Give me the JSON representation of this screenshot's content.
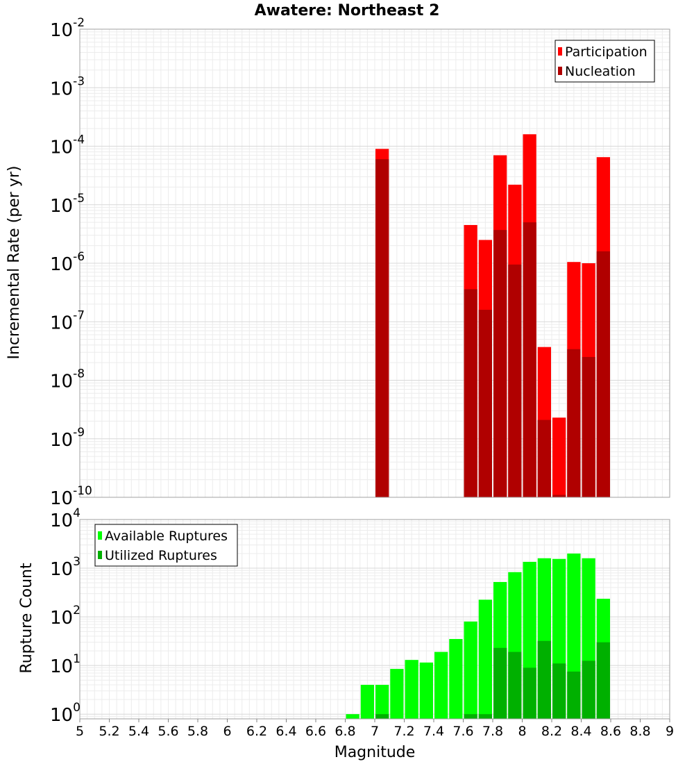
{
  "chart_data": [
    {
      "type": "bar",
      "title": "Awatere: Northeast 2",
      "xlabel": "",
      "ylabel": "Incremental Rate (per yr)",
      "yscale": "log",
      "xlim": [
        5,
        9
      ],
      "ylim": [
        1e-10,
        0.01
      ],
      "y_ticks": [
        {
          "base": "10",
          "exp": "-2"
        },
        {
          "base": "10",
          "exp": "-3"
        },
        {
          "base": "10",
          "exp": "-4"
        },
        {
          "base": "10",
          "exp": "-5"
        },
        {
          "base": "10",
          "exp": "-6"
        },
        {
          "base": "10",
          "exp": "-7"
        },
        {
          "base": "10",
          "exp": "-8"
        },
        {
          "base": "10",
          "exp": "-9"
        },
        {
          "base": "10",
          "exp": "-10"
        }
      ],
      "grid": true,
      "legend_position": "top-right",
      "x": [
        7.05,
        7.65,
        7.75,
        7.85,
        7.95,
        8.05,
        8.15,
        8.25,
        8.35,
        8.45,
        8.55
      ],
      "series": [
        {
          "name": "Participation",
          "color": "#ff0000",
          "values": [
            9e-05,
            4.5e-06,
            2.5e-06,
            7e-05,
            2.2e-05,
            0.00016,
            3.7e-08,
            2.3e-09,
            1.05e-06,
            1e-06,
            6.5e-05
          ]
        },
        {
          "name": "Nucleation",
          "color": "#b00000",
          "values": [
            6e-05,
            3.6e-07,
            1.6e-07,
            3.7e-06,
            9.5e-07,
            5e-06,
            2.1e-09,
            1.1e-10,
            3.4e-08,
            2.5e-08,
            1.6e-06
          ]
        }
      ]
    },
    {
      "type": "bar",
      "title": "",
      "xlabel": "Magnitude",
      "ylabel": "Rupture Count",
      "yscale": "log",
      "xlim": [
        5,
        9
      ],
      "ylim": [
        0.8,
        10000
      ],
      "x_ticks": [
        "5",
        "5.2",
        "5.4",
        "5.6",
        "5.8",
        "6",
        "6.2",
        "6.4",
        "6.6",
        "6.8",
        "7",
        "7.2",
        "7.4",
        "7.6",
        "7.8",
        "8",
        "8.2",
        "8.4",
        "8.6",
        "8.8",
        "9"
      ],
      "y_ticks": [
        {
          "base": "10",
          "exp": "4"
        },
        {
          "base": "10",
          "exp": "3"
        },
        {
          "base": "10",
          "exp": "2"
        },
        {
          "base": "10",
          "exp": "1"
        },
        {
          "base": "10",
          "exp": "0"
        }
      ],
      "grid": true,
      "legend_position": "top-left",
      "x": [
        6.85,
        6.95,
        7.05,
        7.15,
        7.25,
        7.35,
        7.45,
        7.55,
        7.65,
        7.75,
        7.85,
        7.95,
        8.05,
        8.15,
        8.25,
        8.35,
        8.45,
        8.55
      ],
      "series": [
        {
          "name": "Available Ruptures",
          "color": "#00ff00",
          "values": [
            1,
            4,
            4,
            8.5,
            13,
            11.5,
            19,
            35,
            80,
            225,
            520,
            830,
            1350,
            1600,
            1550,
            2000,
            1600,
            235
          ]
        },
        {
          "name": "Utilized Ruptures",
          "color": "#00b000",
          "values": [
            0,
            0,
            1,
            0,
            0,
            0,
            0,
            0,
            1,
            1,
            23,
            19,
            9,
            32,
            11,
            7.5,
            12.5,
            30
          ]
        }
      ]
    }
  ]
}
